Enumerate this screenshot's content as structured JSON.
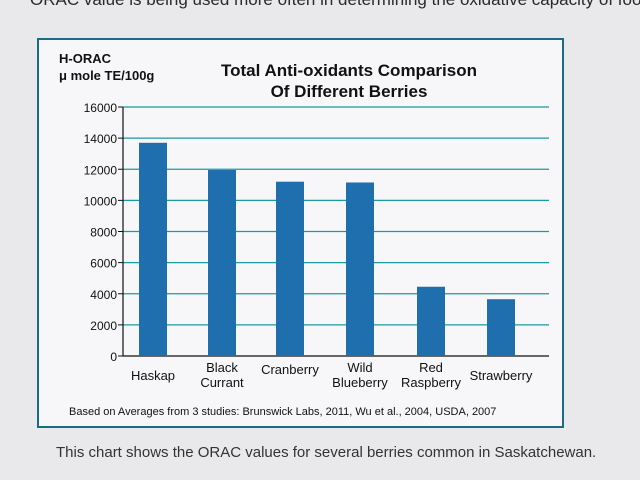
{
  "page": {
    "top_text": "ORAC value is being used more often in determining the oxidative capacity of food.",
    "caption": "This chart shows the ORAC values for several berries common in Saskatchewan."
  },
  "chart_data": {
    "type": "bar",
    "title_lines": [
      "Total Anti-oxidants Comparison",
      "Of Different Berries"
    ],
    "ylabel_lines": [
      "H-ORAC",
      "μ mole TE/100g"
    ],
    "xlabel": "",
    "categories": [
      [
        "Haskap"
      ],
      [
        "Black",
        "Currant"
      ],
      [
        "Cranberry"
      ],
      [
        "Wild",
        "Blueberry"
      ],
      [
        "Red",
        "Raspberry"
      ],
      [
        "Strawberry"
      ]
    ],
    "values": [
      13700,
      11950,
      11200,
      11150,
      4450,
      3650
    ],
    "ylim": [
      0,
      16000
    ],
    "yticks": [
      0,
      2000,
      4000,
      6000,
      8000,
      10000,
      12000,
      14000,
      16000
    ],
    "grid": true,
    "bar_color": "#1f6fae",
    "grid_color": "#1b9a9e",
    "source_note": "Based on Averages from 3 studies: Brunswick Labs, 2011, Wu et al., 2004, USDA, 2007"
  }
}
